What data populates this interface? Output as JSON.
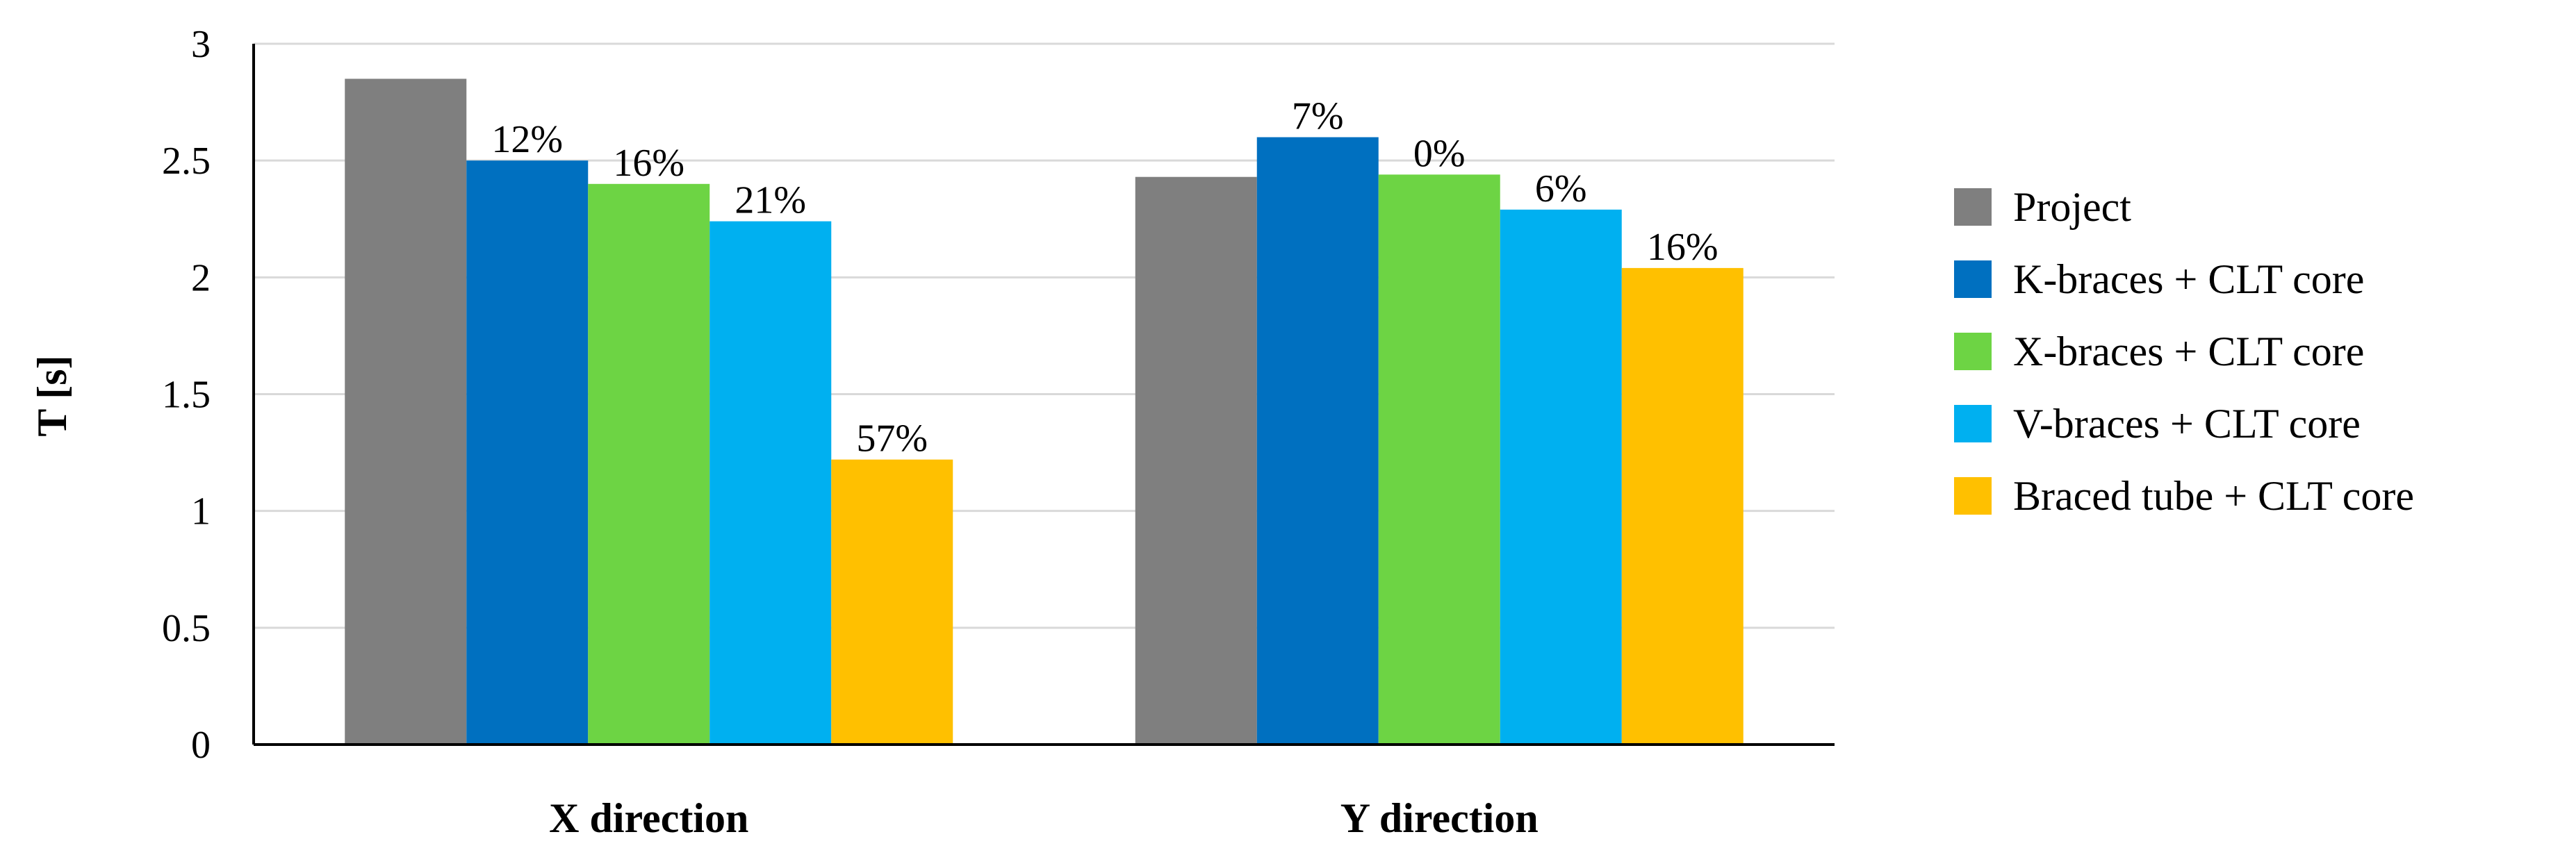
{
  "chart_data": {
    "type": "bar",
    "title": "",
    "xlabel": "",
    "ylabel": "T [s]",
    "ylim": [
      0,
      3
    ],
    "yticks": [
      "0",
      "0.5",
      "1",
      "1.5",
      "2",
      "2.5",
      "3"
    ],
    "grid": true,
    "legend_position": "right",
    "categories": [
      "X direction",
      "Y direction"
    ],
    "series": [
      {
        "name": "Project",
        "color": "#7f7f7f",
        "values": [
          2.85,
          2.43
        ],
        "labels": [
          "",
          ""
        ]
      },
      {
        "name": "K-braces + CLT core",
        "color": "#0070c0",
        "values": [
          2.5,
          2.6
        ],
        "labels": [
          "12%",
          "7%"
        ]
      },
      {
        "name": "X-braces + CLT core",
        "color": "#6dd444",
        "values": [
          2.4,
          2.44
        ],
        "labels": [
          "16%",
          "0%"
        ]
      },
      {
        "name": "V-braces + CLT core",
        "color": "#00b0f0",
        "values": [
          2.24,
          2.29
        ],
        "labels": [
          "21%",
          "6%"
        ]
      },
      {
        "name": "Braced tube + CLT core",
        "color": "#ffc000",
        "values": [
          1.22,
          2.04
        ],
        "labels": [
          "57%",
          "16%"
        ]
      }
    ]
  }
}
